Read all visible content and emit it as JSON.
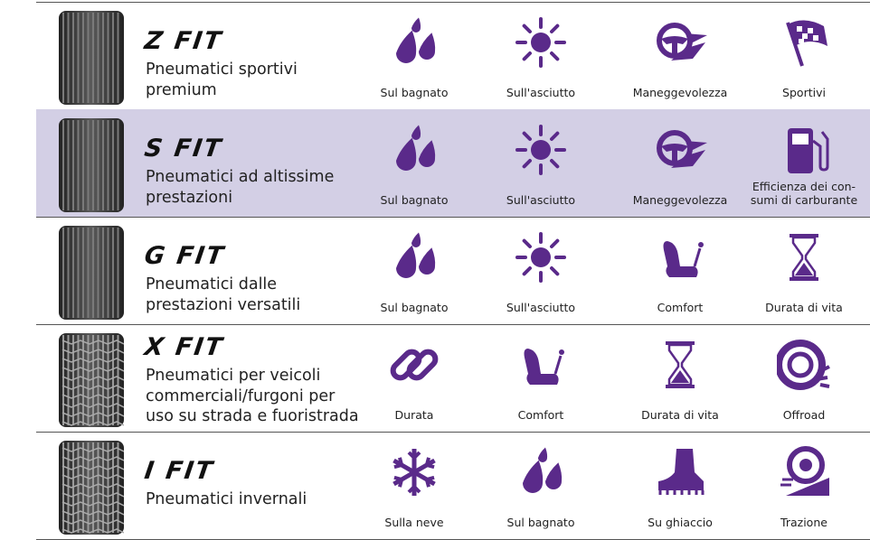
{
  "rows": [
    {
      "name": "Z FIT",
      "description": "Pneumatici sportivi\npremium",
      "features": [
        "Sul bagnato",
        "Sull'asciutto",
        "Maneggevolezza",
        "Sportivi"
      ]
    },
    {
      "name": "S FIT",
      "description": "Pneumatici ad altissime\nprestazioni",
      "features": [
        "Sul bagnato",
        "Sull'asciutto",
        "Maneggevolezza",
        "Efficienza dei con-\nsumi di carburante"
      ]
    },
    {
      "name": "G FIT",
      "description": "Pneumatici dalle\nprestazioni versatili",
      "features": [
        "Sul bagnato",
        "Sull'asciutto",
        "Comfort",
        "Durata di vita"
      ]
    },
    {
      "name": "X FIT",
      "description": "Pneumatici per veicoli\ncommerciali/furgoni per\nuso su strada e fuoristrada",
      "features": [
        "Durata",
        "Comfort",
        "Durata di vita",
        "Offroad"
      ]
    },
    {
      "name": "I FIT",
      "description": "Pneumatici invernali",
      "features": [
        "Sulla neve",
        "Sul bagnato",
        "Su ghiaccio",
        "Trazione"
      ]
    }
  ]
}
